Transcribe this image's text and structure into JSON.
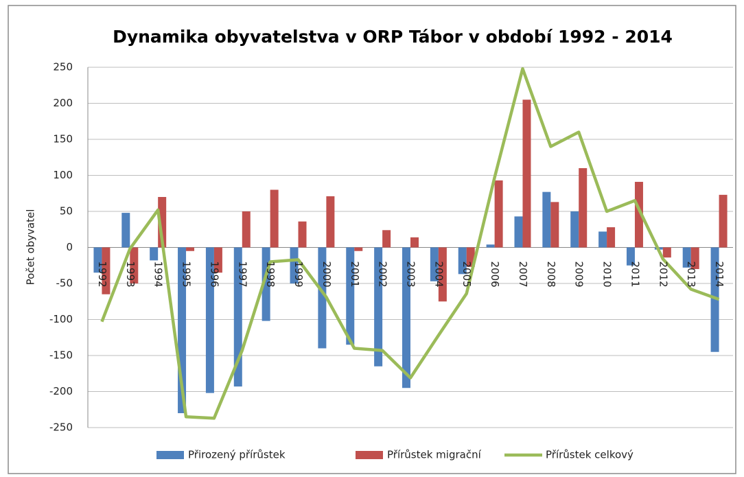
{
  "chart_data": {
    "type": "bar_line",
    "title": "Dynamika obyvatelstva v ORP Tábor v období 1992 - 2014",
    "y_label": "Počet obyvatel",
    "categories": [
      "1992",
      "1993",
      "1994",
      "1995",
      "1996",
      "1997",
      "1998",
      "1999",
      "2000",
      "2001",
      "2002",
      "2003",
      "2004",
      "2005",
      "2006",
      "2007",
      "2008",
      "2009",
      "2010",
      "2011",
      "2012",
      "2013",
      "2014"
    ],
    "series": [
      {
        "name": "Přirozený přírůstek",
        "color": "#4f81bd",
        "kind": "bar",
        "values": [
          -35,
          48,
          -18,
          -230,
          -202,
          -193,
          -102,
          -50,
          -140,
          -135,
          -165,
          -195,
          -47,
          -37,
          4,
          43,
          77,
          50,
          22,
          -25,
          -3,
          -28,
          -145
        ]
      },
      {
        "name": "Přírůstek migrační",
        "color": "#c0504d",
        "kind": "bar",
        "values": [
          -65,
          -50,
          70,
          -5,
          -35,
          50,
          80,
          36,
          71,
          -5,
          24,
          14,
          -75,
          -27,
          93,
          205,
          63,
          110,
          28,
          91,
          -14,
          -30,
          73
        ]
      },
      {
        "name": "Přírůstek celkový",
        "color": "#9bbb59",
        "kind": "line",
        "values": [
          -103,
          -2,
          52,
          -235,
          -237,
          -143,
          -20,
          -17,
          -69,
          -140,
          -143,
          -181,
          -122,
          -64,
          97,
          248,
          140,
          160,
          50,
          65,
          -16,
          -58,
          -72
        ]
      }
    ],
    "ylim": [
      -250,
      250
    ],
    "yticks": [
      -250,
      -200,
      -150,
      -100,
      -50,
      0,
      50,
      100,
      150,
      200,
      250
    ],
    "grid": true,
    "legend": "bottom"
  }
}
